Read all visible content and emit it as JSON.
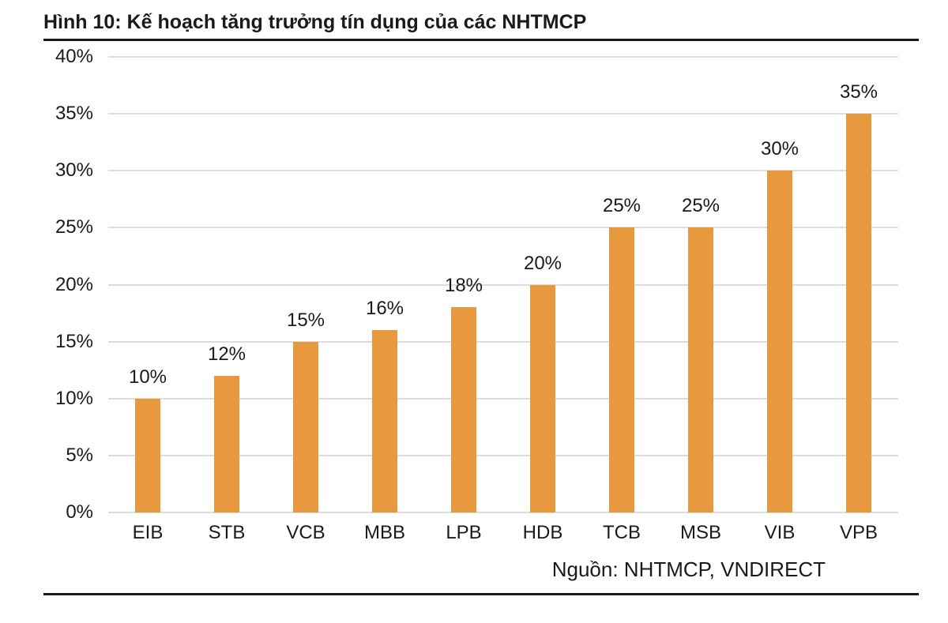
{
  "header": {
    "title": "Hình 10: Kế hoạch tăng trưởng tín dụng của các NHTMCP"
  },
  "footer": {
    "source": "Nguồn: NHTMCP, VNDIRECT"
  },
  "chart_data": {
    "type": "bar",
    "title": "Hình 10: Kế hoạch tăng trưởng tín dụng của các NHTMCP",
    "categories": [
      "EIB",
      "STB",
      "VCB",
      "MBB",
      "LPB",
      "HDB",
      "TCB",
      "MSB",
      "VIB",
      "VPB"
    ],
    "values": [
      10,
      12,
      15,
      16,
      18,
      20,
      25,
      25,
      30,
      35
    ],
    "value_labels": [
      "10%",
      "12%",
      "15%",
      "16%",
      "18%",
      "20%",
      "25%",
      "25%",
      "30%",
      "35%"
    ],
    "xlabel": "",
    "ylabel": "",
    "ylim": [
      0,
      40
    ],
    "ytick_step": 5,
    "ytick_labels": [
      "0%",
      "5%",
      "10%",
      "15%",
      "20%",
      "25%",
      "30%",
      "35%",
      "40%"
    ],
    "grid": true,
    "legend": false,
    "source": "Nguồn: NHTMCP, VNDIRECT",
    "bar_color": "#E8993E",
    "gridline_color": "#DCDCDC",
    "text_color": "#1A1A1A"
  }
}
